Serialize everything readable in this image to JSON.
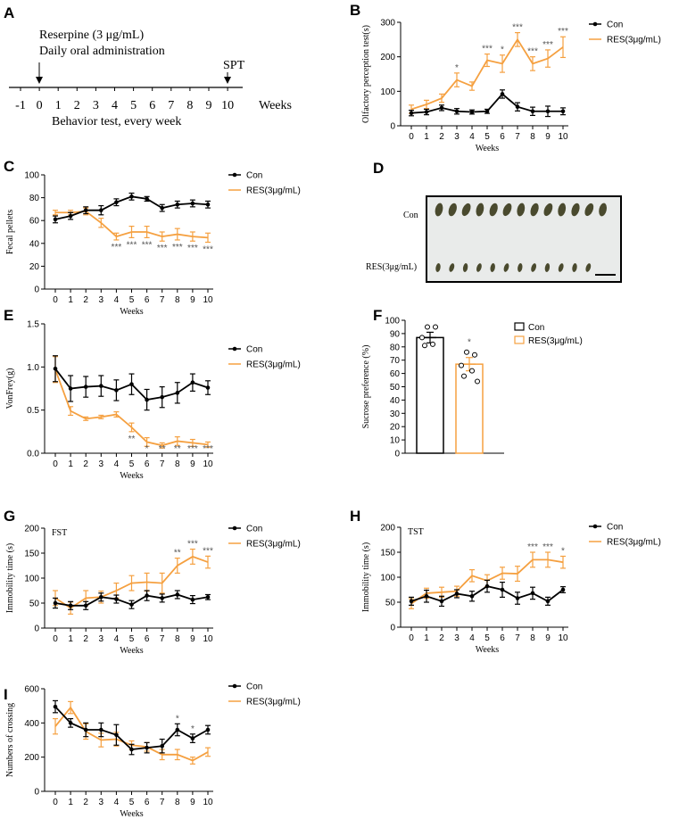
{
  "colors": {
    "con": "#000000",
    "res": "#f5a040"
  },
  "panels": {
    "A": {
      "letter": "A",
      "line1": "Reserpine (3 μg/mL)",
      "line2": "Daily oral administration",
      "spt": "SPT",
      "weeks_label": "Weeks",
      "bottom": "Behavior test, every week",
      "ticks": [
        "-1",
        "0",
        "1",
        "2",
        "3",
        "4",
        "5",
        "6",
        "7",
        "8",
        "9",
        "10"
      ]
    },
    "D": {
      "letter": "D",
      "label_con": "Con",
      "label_res": "RES(3μg/mL)"
    },
    "F": {
      "letter": "F"
    }
  },
  "chart_data": [
    {
      "id": "B",
      "type": "line",
      "letter": "B",
      "xlabel": "Weeks",
      "ylabel": "Olfactory perception test(s)",
      "x": [
        0,
        1,
        2,
        3,
        4,
        5,
        6,
        7,
        8,
        9,
        10
      ],
      "ylim": [
        0,
        300
      ],
      "yticks": [
        0,
        100,
        200,
        300
      ],
      "legend": [
        "Con",
        "RES(3μg/mL)"
      ],
      "series": [
        {
          "name": "Con",
          "values": [
            37,
            40,
            52,
            42,
            40,
            42,
            92,
            55,
            42,
            42,
            42
          ],
          "err": [
            8,
            8,
            8,
            8,
            6,
            6,
            12,
            12,
            12,
            15,
            10
          ]
        },
        {
          "name": "RES(3μg/mL)",
          "values": [
            48,
            62,
            80,
            133,
            115,
            190,
            180,
            250,
            180,
            195,
            228
          ],
          "err": [
            12,
            12,
            12,
            20,
            12,
            18,
            25,
            20,
            20,
            25,
            30
          ]
        }
      ],
      "stars": [
        "",
        "",
        "",
        "*",
        "",
        "***",
        "*",
        "***",
        "***",
        "***",
        "***"
      ]
    },
    {
      "id": "C",
      "type": "line",
      "letter": "C",
      "xlabel": "Weeks",
      "ylabel": "Fecal pellets",
      "x": [
        0,
        1,
        2,
        3,
        4,
        5,
        6,
        7,
        8,
        9,
        10
      ],
      "ylim": [
        0,
        100
      ],
      "yticks": [
        0,
        20,
        40,
        60,
        80,
        100
      ],
      "legend": [
        "Con",
        "RES(3μg/mL)"
      ],
      "series": [
        {
          "name": "Con",
          "values": [
            61,
            64,
            69,
            69,
            76,
            81,
            79,
            71,
            74,
            75,
            74
          ],
          "err": [
            3,
            3,
            3,
            4,
            3,
            3,
            2,
            3,
            3,
            3,
            3
          ]
        },
        {
          "name": "RES(3μg/mL)",
          "values": [
            67,
            67,
            68,
            58,
            46,
            50,
            50,
            46,
            48,
            46,
            45
          ],
          "err": [
            2,
            2,
            3,
            4,
            3,
            5,
            5,
            4,
            5,
            4,
            4
          ]
        }
      ],
      "stars": [
        "",
        "",
        "",
        "",
        "***",
        "***",
        "***",
        "***",
        "***",
        "***",
        "***"
      ]
    },
    {
      "id": "E",
      "type": "line",
      "letter": "E",
      "xlabel": "Weeks",
      "ylabel": "VonFrey(g)",
      "x": [
        0,
        1,
        2,
        3,
        4,
        5,
        6,
        7,
        8,
        9,
        10
      ],
      "ylim": [
        0,
        1.5
      ],
      "yticks": [
        0.0,
        0.5,
        1.0,
        1.5
      ],
      "legend": [
        "Con",
        "RES(3μg/mL)"
      ],
      "series": [
        {
          "name": "Con",
          "values": [
            0.98,
            0.75,
            0.77,
            0.78,
            0.73,
            0.8,
            0.62,
            0.65,
            0.7,
            0.82,
            0.76
          ],
          "err": [
            0.15,
            0.15,
            0.12,
            0.12,
            0.12,
            0.12,
            0.12,
            0.12,
            0.12,
            0.1,
            0.08
          ]
        },
        {
          "name": "RES(3μg/mL)",
          "values": [
            0.97,
            0.49,
            0.4,
            0.42,
            0.45,
            0.3,
            0.13,
            0.09,
            0.14,
            0.12,
            0.1
          ],
          "err": [
            0.15,
            0.05,
            0.02,
            0.02,
            0.03,
            0.05,
            0.05,
            0.03,
            0.05,
            0.04,
            0.03
          ]
        }
      ],
      "stars": [
        "",
        "",
        "",
        "",
        "",
        "**",
        "*",
        "**",
        "**",
        "***",
        "***"
      ]
    },
    {
      "id": "F",
      "type": "bar",
      "letter": "F",
      "ylabel": "Sucrose preference (%)",
      "categories": [
        "Con",
        "RES(3μg/mL)"
      ],
      "values": [
        87,
        67
      ],
      "err": [
        4,
        5
      ],
      "points": [
        [
          95,
          95,
          87,
          82,
          81
        ],
        [
          76,
          74,
          66,
          62,
          58,
          54
        ]
      ],
      "ylim": [
        0,
        100
      ],
      "yticks": [
        0,
        10,
        20,
        30,
        40,
        50,
        60,
        70,
        80,
        90,
        100
      ],
      "legend": [
        "Con",
        "RES(3μg/mL)"
      ],
      "stars": [
        "",
        "*"
      ]
    },
    {
      "id": "G",
      "type": "line",
      "letter": "G",
      "inner_label": "FST",
      "xlabel": "Weeks",
      "ylabel": "Immobility time (s)",
      "x": [
        0,
        1,
        2,
        3,
        4,
        5,
        6,
        7,
        8,
        9,
        10
      ],
      "ylim": [
        0,
        200
      ],
      "yticks": [
        0,
        50,
        100,
        150,
        200
      ],
      "legend": [
        "Con",
        "RES(3μg/mL)"
      ],
      "series": [
        {
          "name": "Con",
          "values": [
            50,
            45,
            45,
            62,
            58,
            47,
            65,
            60,
            67,
            57,
            62
          ],
          "err": [
            10,
            8,
            8,
            8,
            8,
            8,
            10,
            8,
            8,
            8,
            5
          ]
        },
        {
          "name": "RES(3μg/mL)",
          "values": [
            60,
            40,
            60,
            62,
            75,
            90,
            92,
            90,
            125,
            143,
            132
          ],
          "err": [
            15,
            12,
            15,
            12,
            15,
            15,
            18,
            20,
            15,
            15,
            12
          ]
        }
      ],
      "stars": [
        "",
        "",
        "",
        "",
        "",
        "",
        "",
        "",
        "**",
        "***",
        "***"
      ]
    },
    {
      "id": "H",
      "type": "line",
      "letter": "H",
      "inner_label": "TST",
      "xlabel": "Weeks",
      "ylabel": "Immobility time (s)",
      "x": [
        0,
        1,
        2,
        3,
        4,
        5,
        6,
        7,
        8,
        9,
        10
      ],
      "ylim": [
        0,
        200
      ],
      "yticks": [
        0,
        50,
        100,
        150,
        200
      ],
      "legend": [
        "Con",
        "RES(3μg/mL)"
      ],
      "series": [
        {
          "name": "Con",
          "values": [
            52,
            62,
            52,
            67,
            62,
            82,
            75,
            58,
            68,
            52,
            75
          ],
          "err": [
            8,
            12,
            10,
            8,
            10,
            12,
            15,
            12,
            12,
            8,
            6
          ]
        },
        {
          "name": "RES(3μg/mL)",
          "values": [
            47,
            68,
            70,
            72,
            103,
            93,
            108,
            107,
            135,
            135,
            130
          ],
          "err": [
            10,
            10,
            10,
            10,
            12,
            12,
            12,
            15,
            15,
            15,
            12
          ]
        }
      ],
      "stars": [
        "",
        "",
        "",
        "",
        "",
        "",
        "",
        "",
        "***",
        "***",
        "*"
      ]
    },
    {
      "id": "I",
      "type": "line",
      "letter": "I",
      "xlabel": "Weeks",
      "ylabel": "Numbers of crossing",
      "x": [
        0,
        1,
        2,
        3,
        4,
        5,
        6,
        7,
        8,
        9,
        10
      ],
      "ylim": [
        0,
        600
      ],
      "yticks": [
        0,
        200,
        400,
        600
      ],
      "legend": [
        "Con",
        "RES(3μg/mL)"
      ],
      "series": [
        {
          "name": "Con",
          "values": [
            495,
            400,
            360,
            360,
            330,
            245,
            255,
            265,
            360,
            310,
            360
          ],
          "err": [
            35,
            25,
            40,
            40,
            60,
            30,
            30,
            40,
            35,
            25,
            25
          ]
        },
        {
          "name": "RES(3μg/mL)",
          "values": [
            380,
            490,
            350,
            300,
            305,
            270,
            260,
            215,
            215,
            180,
            230
          ],
          "err": [
            45,
            35,
            45,
            40,
            40,
            25,
            25,
            30,
            30,
            20,
            25
          ]
        }
      ],
      "stars": [
        "",
        "",
        "",
        "",
        "",
        "",
        "",
        "",
        "*",
        "*",
        ""
      ]
    }
  ]
}
